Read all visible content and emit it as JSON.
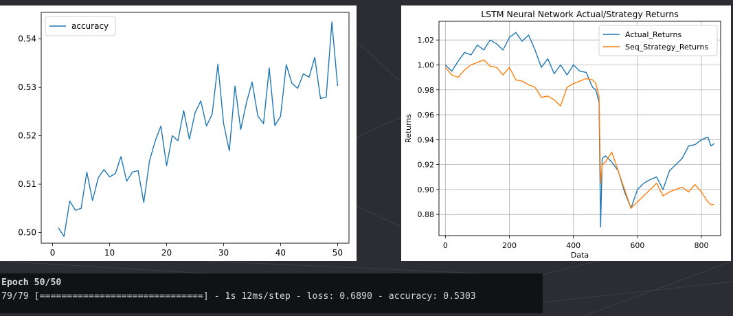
{
  "terminal": {
    "line1": "Epoch 50/50",
    "line2": "79/79 [==============================] - 1s 12ms/step - loss: 0.6890 - accuracy: 0.5303"
  },
  "colors": {
    "blue": "#1f77b4",
    "orange": "#ff7f0e",
    "background": "#2b2d33",
    "terminal": "#111214"
  },
  "chart_data": [
    {
      "type": "line",
      "title": "",
      "xlabel": "",
      "ylabel": "",
      "legend": "top-left",
      "grid": false,
      "xlim": [
        -2,
        52
      ],
      "ylim": [
        0.4978,
        0.5455
      ],
      "xticks": [
        0,
        10,
        20,
        30,
        40,
        50
      ],
      "yticks": [
        0.5,
        0.51,
        0.52,
        0.53,
        0.54
      ],
      "ytick_labels": [
        "0.50",
        "0.51",
        "0.52",
        "0.53",
        "0.54"
      ],
      "series": [
        {
          "name": "accuracy",
          "color": "#1f77b4",
          "x": [
            1,
            2,
            3,
            4,
            5,
            6,
            7,
            8,
            9,
            10,
            11,
            12,
            13,
            14,
            15,
            16,
            17,
            18,
            19,
            20,
            21,
            22,
            23,
            24,
            25,
            26,
            27,
            28,
            29,
            30,
            31,
            32,
            33,
            34,
            35,
            36,
            37,
            38,
            39,
            40,
            41,
            42,
            43,
            44,
            45,
            46,
            47,
            48,
            49,
            50
          ],
          "y": [
            0.501,
            0.4992,
            0.5065,
            0.5046,
            0.505,
            0.5125,
            0.5066,
            0.5113,
            0.513,
            0.5115,
            0.5122,
            0.5157,
            0.5106,
            0.5125,
            0.5128,
            0.5062,
            0.5148,
            0.5189,
            0.522,
            0.5138,
            0.52,
            0.519,
            0.5252,
            0.5193,
            0.5248,
            0.5272,
            0.522,
            0.5245,
            0.5348,
            0.5225,
            0.5169,
            0.5303,
            0.5213,
            0.5268,
            0.5311,
            0.5241,
            0.5225,
            0.534,
            0.5221,
            0.524,
            0.5347,
            0.5308,
            0.5298,
            0.5328,
            0.5321,
            0.5362,
            0.5277,
            0.528,
            0.5435,
            0.5303
          ]
        }
      ]
    },
    {
      "type": "line",
      "title": "LSTM Neural Network Actual/Strategy Returns",
      "xlabel": "Data",
      "ylabel": "Returns",
      "legend": "top-right",
      "grid": true,
      "xlim": [
        -20,
        860
      ],
      "ylim": [
        0.863,
        1.035
      ],
      "xticks": [
        0,
        200,
        400,
        600,
        800
      ],
      "yticks": [
        0.88,
        0.9,
        0.92,
        0.94,
        0.96,
        0.98,
        1.0,
        1.02
      ],
      "ytick_labels": [
        "0.88",
        "0.90",
        "0.92",
        "0.94",
        "0.96",
        "0.98",
        "1.00",
        "1.02"
      ],
      "series": [
        {
          "name": "Actual_Returns",
          "color": "#1f77b4",
          "x": [
            0,
            20,
            40,
            60,
            80,
            100,
            120,
            140,
            160,
            180,
            200,
            220,
            240,
            260,
            280,
            300,
            320,
            340,
            360,
            380,
            400,
            420,
            440,
            460,
            470,
            480,
            485,
            490,
            500,
            520,
            540,
            560,
            580,
            600,
            620,
            640,
            660,
            680,
            700,
            720,
            740,
            760,
            780,
            800,
            820,
            830,
            840
          ],
          "y": [
            1.0,
            0.995,
            1.003,
            1.01,
            1.008,
            1.016,
            1.012,
            1.02,
            1.017,
            1.012,
            1.022,
            1.026,
            1.019,
            1.024,
            1.012,
            0.998,
            1.005,
            0.993,
            1.0,
            0.992,
            1.0,
            0.995,
            0.994,
            0.982,
            0.98,
            0.97,
            0.87,
            0.925,
            0.927,
            0.922,
            0.915,
            0.898,
            0.885,
            0.9,
            0.905,
            0.908,
            0.91,
            0.9,
            0.915,
            0.92,
            0.925,
            0.935,
            0.936,
            0.94,
            0.942,
            0.935,
            0.937
          ]
        },
        {
          "name": "Seq_Strategy_Returns",
          "color": "#ff7f0e",
          "x": [
            0,
            20,
            40,
            60,
            80,
            100,
            120,
            140,
            160,
            180,
            200,
            220,
            240,
            260,
            280,
            300,
            320,
            340,
            360,
            380,
            400,
            420,
            440,
            460,
            470,
            480,
            485,
            490,
            500,
            520,
            540,
            560,
            580,
            600,
            620,
            640,
            660,
            680,
            700,
            720,
            740,
            760,
            780,
            800,
            820,
            830,
            840
          ],
          "y": [
            0.998,
            0.992,
            0.99,
            0.996,
            1.0,
            1.002,
            1.004,
            0.999,
            0.998,
            0.992,
            0.998,
            0.988,
            0.987,
            0.984,
            0.982,
            0.974,
            0.975,
            0.972,
            0.967,
            0.982,
            0.985,
            0.987,
            0.989,
            0.988,
            0.985,
            0.975,
            0.905,
            0.92,
            0.922,
            0.93,
            0.915,
            0.9,
            0.885,
            0.89,
            0.895,
            0.9,
            0.905,
            0.895,
            0.898,
            0.9,
            0.902,
            0.898,
            0.904,
            0.898,
            0.89,
            0.888,
            0.888
          ]
        }
      ]
    }
  ]
}
